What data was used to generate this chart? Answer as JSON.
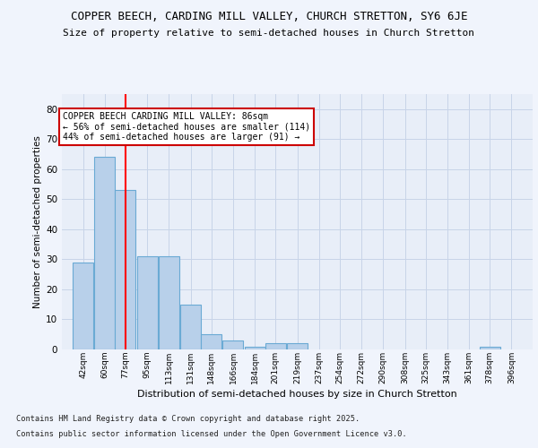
{
  "title1": "COPPER BEECH, CARDING MILL VALLEY, CHURCH STRETTON, SY6 6JE",
  "title2": "Size of property relative to semi-detached houses in Church Stretton",
  "xlabel": "Distribution of semi-detached houses by size in Church Stretton",
  "ylabel": "Number of semi-detached properties",
  "bins": [
    42,
    60,
    77,
    95,
    113,
    131,
    148,
    166,
    184,
    201,
    219,
    237,
    254,
    272,
    290,
    308,
    325,
    343,
    361,
    378,
    396
  ],
  "values": [
    29,
    64,
    53,
    31,
    31,
    15,
    5,
    3,
    1,
    2,
    2,
    0,
    0,
    0,
    0,
    0,
    0,
    0,
    0,
    1,
    0
  ],
  "bar_color": "#b8d0ea",
  "bar_edge_color": "#6aaad4",
  "grid_color": "#c8d4e8",
  "background_color": "#e8eef8",
  "fig_background": "#f0f4fc",
  "red_line_x": 86,
  "annotation_title": "COPPER BEECH CARDING MILL VALLEY: 86sqm",
  "annotation_line1": "← 56% of semi-detached houses are smaller (114)",
  "annotation_line2": "44% of semi-detached houses are larger (91) →",
  "annotation_box_color": "#ffffff",
  "annotation_border_color": "#cc0000",
  "ylim": [
    0,
    85
  ],
  "yticks": [
    0,
    10,
    20,
    30,
    40,
    50,
    60,
    70,
    80
  ],
  "footer1": "Contains HM Land Registry data © Crown copyright and database right 2025.",
  "footer2": "Contains public sector information licensed under the Open Government Licence v3.0."
}
